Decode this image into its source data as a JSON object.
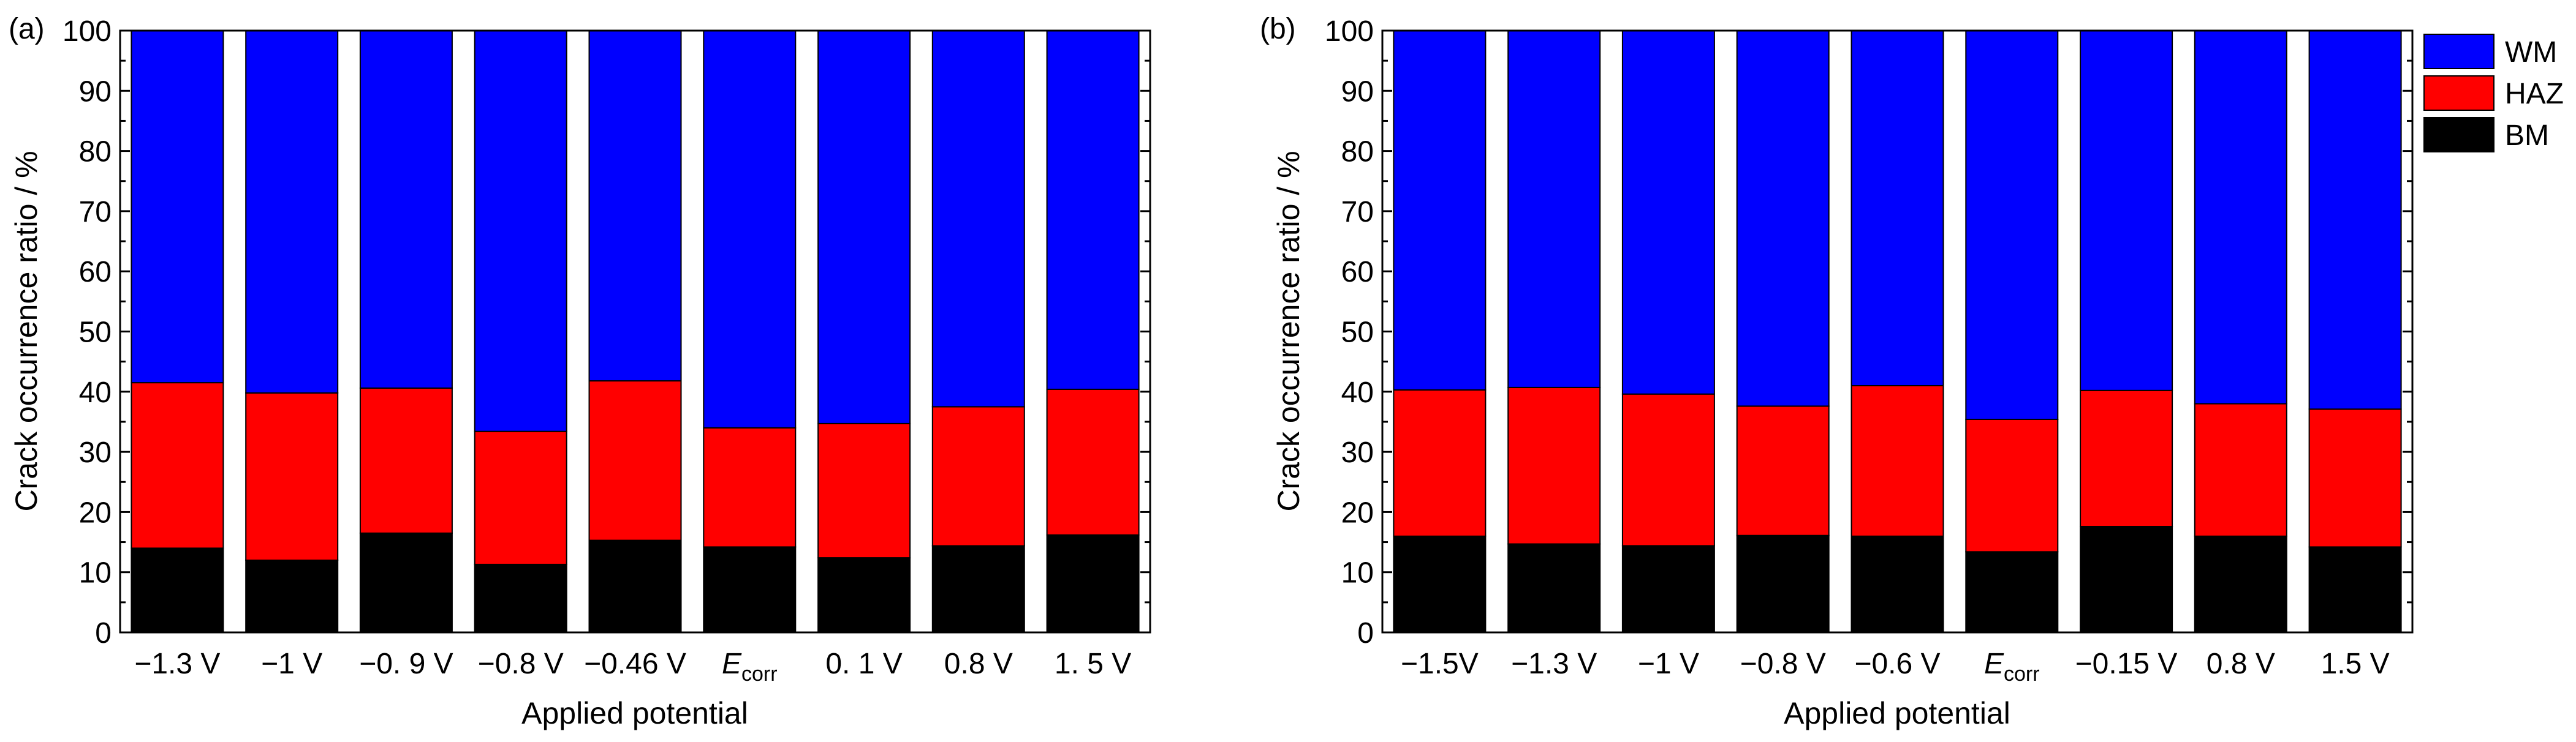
{
  "chart_data": [
    {
      "panel_label": "(a)",
      "type": "bar",
      "stacked": true,
      "categories": [
        "−1.3 V",
        "−1 V",
        "−0. 9 V",
        "−0.8 V",
        "−0.46 V",
        "E_corr",
        "0. 1 V",
        "0.8 V",
        "1. 5 V"
      ],
      "series": [
        {
          "name": "BM",
          "values": [
            14,
            12,
            16.5,
            11.3,
            15.3,
            14.2,
            12.4,
            14.4,
            16.2
          ]
        },
        {
          "name": "HAZ",
          "values": [
            27.5,
            27.8,
            24.1,
            22.1,
            26.5,
            19.8,
            22.3,
            23.1,
            24.2
          ]
        },
        {
          "name": "WM",
          "values": [
            58.5,
            60.2,
            59.4,
            66.6,
            58.2,
            66,
            65.3,
            62.5,
            59.6
          ]
        }
      ],
      "xlabel": "Applied potential",
      "ylabel": "Crack occurrence ratio / %",
      "ylim": [
        0,
        100
      ],
      "yticks": [
        "0",
        "10",
        "20",
        "30",
        "40",
        "50",
        "60",
        "70",
        "80",
        "90",
        "100"
      ]
    },
    {
      "panel_label": "(b)",
      "type": "bar",
      "stacked": true,
      "categories": [
        "−1.5V",
        "−1.3 V",
        "−1 V",
        "−0.8 V",
        "−0.6 V",
        "E_corr",
        "−0.15 V",
        "0.8 V",
        "1.5 V"
      ],
      "series": [
        {
          "name": "BM",
          "values": [
            16,
            14.7,
            14.4,
            16.1,
            16,
            13.4,
            17.6,
            16,
            14.2
          ]
        },
        {
          "name": "HAZ",
          "values": [
            24.3,
            26,
            25.2,
            21.5,
            25,
            22,
            22.6,
            22,
            22.9
          ]
        },
        {
          "name": "WM",
          "values": [
            59.7,
            59.3,
            60.4,
            62.4,
            59,
            64.6,
            59.8,
            62,
            62.9
          ]
        }
      ],
      "xlabel": "Applied potential",
      "ylabel": "Crack occurrence ratio / %",
      "ylim": [
        0,
        100
      ],
      "yticks": [
        "0",
        "10",
        "20",
        "30",
        "40",
        "50",
        "60",
        "70",
        "80",
        "90",
        "100"
      ]
    }
  ],
  "ecorr": {
    "main": "E",
    "sub": "corr"
  },
  "legend": {
    "entries": [
      {
        "name": "WM",
        "color": "#0000FF"
      },
      {
        "name": "HAZ",
        "color": "#FF0000"
      },
      {
        "name": "BM",
        "color": "#000000"
      }
    ],
    "placement": "top-right, outside panel (b)"
  },
  "colors": {
    "WM": "#0000FF",
    "HAZ": "#FF0000",
    "BM": "#000000"
  }
}
